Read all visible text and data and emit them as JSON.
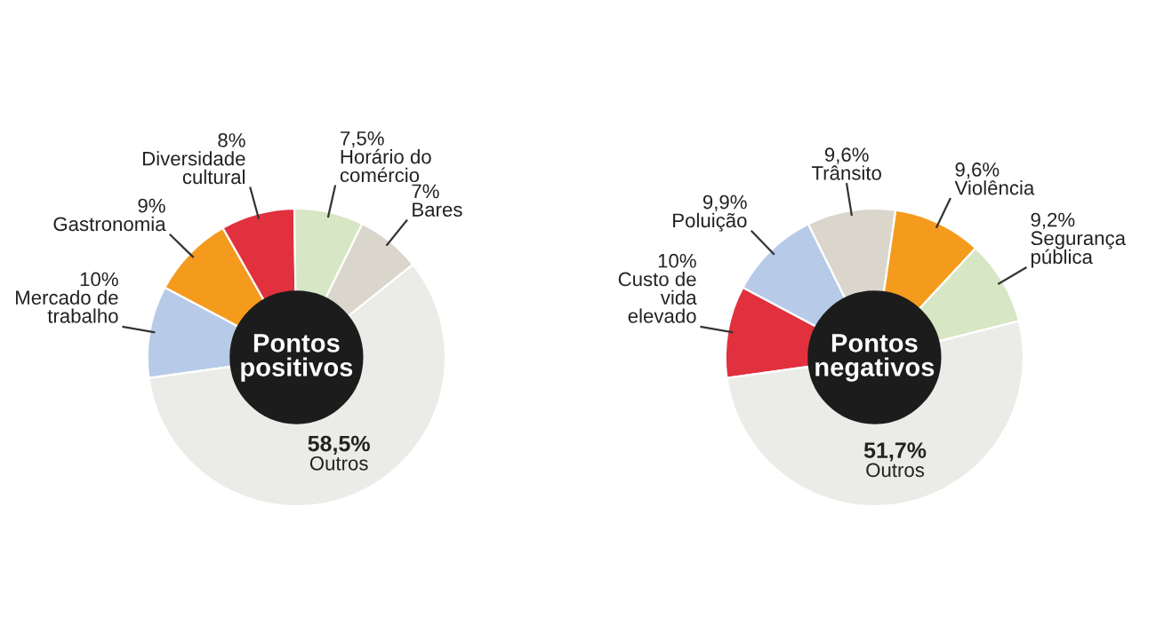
{
  "chart_data": [
    {
      "type": "donut",
      "categories": [
        "Mercado de trabalho",
        "Gastronomia",
        "Diversidade cultural",
        "Horário do comércio",
        "Bares",
        "Outros"
      ],
      "values": [
        10,
        9,
        8,
        7.5,
        7,
        58.5
      ],
      "value_labels": [
        "10%",
        "9%",
        "8%",
        "7,5%",
        "7%",
        "58,5%"
      ],
      "colors": [
        "#b7cbe8",
        "#f49b1e",
        "#e1313e",
        "#d7e6c4",
        "#dad6cb",
        "#ebebe7"
      ],
      "annotations": [
        "Pontos positivos"
      ]
    },
    {
      "type": "donut",
      "categories": [
        "Custo de vida elevado",
        "Poluição",
        "Trânsito",
        "Violência",
        "Segurança pública",
        "Outros"
      ],
      "values": [
        10,
        9.9,
        9.6,
        9.6,
        9.2,
        51.7
      ],
      "value_labels": [
        "10%",
        "9,9%",
        "9,6%",
        "9,6%",
        "9,2%",
        "51,7%"
      ],
      "colors": [
        "#e1313e",
        "#b7cbe8",
        "#dad6cb",
        "#f49b1e",
        "#d7e6c4",
        "#ebebe7"
      ],
      "annotations": [
        "Pontos negativos"
      ]
    }
  ]
}
